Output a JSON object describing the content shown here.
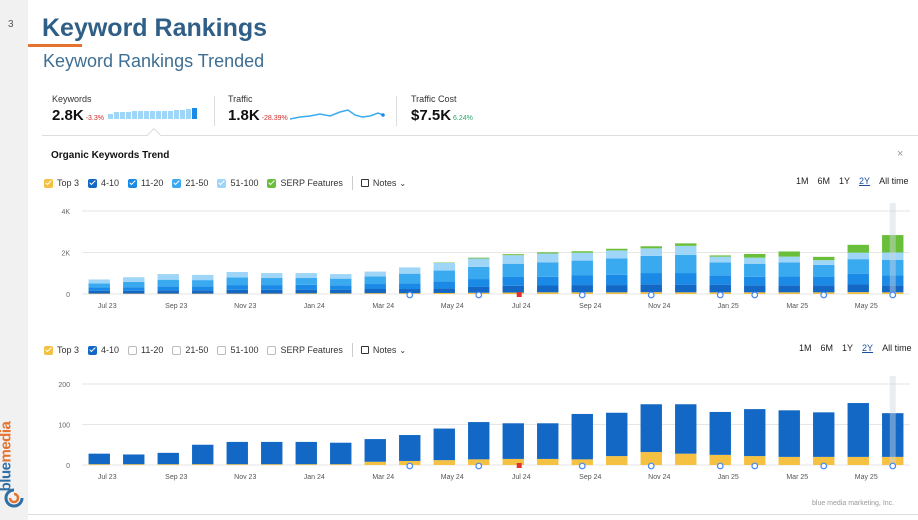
{
  "slide": {
    "page_number": "3",
    "title": "Keyword Rankings",
    "subtitle": "Keyword Rankings Trended",
    "brand": {
      "part1": "blue",
      "part2": "media"
    },
    "footer": "blue media marketing, Inc."
  },
  "metrics": [
    {
      "label": "Keywords",
      "value": "2.8K",
      "delta": "-3.3%",
      "delta_color": "#d12c2c"
    },
    {
      "label": "Traffic",
      "value": "1.8K",
      "delta": "-28.39%",
      "delta_color": "#d12c2c"
    },
    {
      "label": "Traffic Cost",
      "value": "$7.5K",
      "delta": "6.24%",
      "delta_color": "#27a86a"
    }
  ],
  "panel": {
    "title": "Organic Keywords Trend",
    "close": "×"
  },
  "legend_top": [
    {
      "label": "Top 3",
      "color": "#f5c142",
      "checked": true
    },
    {
      "label": "4-10",
      "color": "#1268c4",
      "checked": true
    },
    {
      "label": "11-20",
      "color": "#1a8ae6",
      "checked": true
    },
    {
      "label": "21-50",
      "color": "#3aaaf0",
      "checked": true
    },
    {
      "label": "51-100",
      "color": "#9fd6f8",
      "checked": true
    },
    {
      "label": "SERP Features",
      "color": "#6abf3a",
      "checked": true
    }
  ],
  "legend_bottom": [
    {
      "label": "Top 3",
      "color": "#f5c142",
      "checked": true
    },
    {
      "label": "4-10",
      "color": "#1268c4",
      "checked": true
    },
    {
      "label": "11-20",
      "color": "#bbb",
      "checked": false
    },
    {
      "label": "21-50",
      "color": "#bbb",
      "checked": false
    },
    {
      "label": "51-100",
      "color": "#bbb",
      "checked": false
    },
    {
      "label": "SERP Features",
      "color": "#bbb",
      "checked": false
    }
  ],
  "notes_label": "Notes",
  "ranges": [
    "1M",
    "6M",
    "1Y",
    "2Y",
    "All time"
  ],
  "active_range": "2Y",
  "chart_data": [
    {
      "type": "bar",
      "title": "Organic Keywords Trend",
      "stacked": true,
      "x_tick_labels": [
        "Jul 23",
        "Sep 23",
        "Nov 23",
        "Jan 24",
        "Mar 24",
        "May 24",
        "Jul 24",
        "Sep 24",
        "Nov 24",
        "Jan 25",
        "Mar 25",
        "May 25"
      ],
      "ytick_labels": [
        "0",
        "2K",
        "4K"
      ],
      "ylim": [
        0,
        4000
      ],
      "grid": true,
      "series": [
        {
          "name": "Top 3",
          "color": "#f5c142",
          "values": [
            20,
            20,
            20,
            20,
            20,
            20,
            30,
            30,
            40,
            40,
            50,
            60,
            70,
            80,
            80,
            80,
            90,
            80,
            80,
            80,
            80,
            80,
            90,
            80
          ]
        },
        {
          "name": "4-10",
          "color": "#1268c4",
          "values": [
            140,
            140,
            160,
            160,
            180,
            180,
            180,
            180,
            200,
            200,
            220,
            280,
            330,
            330,
            350,
            350,
            380,
            370,
            370,
            340,
            340,
            340,
            370,
            340
          ]
        },
        {
          "name": "11-20",
          "color": "#1a8ae6",
          "values": [
            150,
            170,
            190,
            190,
            230,
            230,
            230,
            210,
            240,
            280,
            340,
            380,
            420,
            420,
            480,
            500,
            540,
            560,
            450,
            410,
            420,
            400,
            520,
            470
          ]
        },
        {
          "name": "21-50",
          "color": "#3aaaf0",
          "values": [
            200,
            250,
            320,
            300,
            370,
            340,
            330,
            320,
            370,
            460,
            520,
            590,
            640,
            700,
            700,
            780,
            830,
            880,
            620,
            630,
            680,
            580,
            700,
            760
          ]
        },
        {
          "name": "51-100",
          "color": "#9fd6f8",
          "values": [
            190,
            230,
            270,
            250,
            260,
            240,
            240,
            220,
            230,
            300,
            370,
            400,
            410,
            420,
            380,
            390,
            360,
            430,
            280,
            290,
            280,
            230,
            310,
            350
          ]
        },
        {
          "name": "SERP Features",
          "color": "#6abf3a",
          "values": [
            0,
            0,
            0,
            0,
            0,
            0,
            0,
            0,
            0,
            0,
            20,
            40,
            50,
            60,
            70,
            80,
            100,
            120,
            60,
            180,
            250,
            160,
            380,
            840
          ]
        }
      ]
    },
    {
      "type": "bar",
      "stacked": true,
      "x_tick_labels": [
        "Jul 23",
        "Sep 23",
        "Nov 23",
        "Jan 24",
        "Mar 24",
        "May 24",
        "Jul 24",
        "Sep 24",
        "Nov 24",
        "Jan 25",
        "Mar 25",
        "May 25"
      ],
      "ytick_labels": [
        "0",
        "100",
        "200"
      ],
      "ylim": [
        0,
        200
      ],
      "grid": true,
      "series": [
        {
          "name": "Top 3",
          "color": "#f5c142",
          "values": [
            2,
            2,
            2,
            2,
            2,
            2,
            2,
            2,
            8,
            10,
            12,
            14,
            15,
            15,
            14,
            22,
            32,
            28,
            25,
            22,
            20,
            20,
            20,
            20
          ]
        },
        {
          "name": "4-10",
          "color": "#1268c4",
          "values": [
            26,
            24,
            28,
            48,
            55,
            55,
            55,
            53,
            56,
            64,
            78,
            92,
            88,
            88,
            112,
            107,
            118,
            122,
            106,
            116,
            115,
            110,
            133,
            108
          ]
        }
      ]
    }
  ]
}
